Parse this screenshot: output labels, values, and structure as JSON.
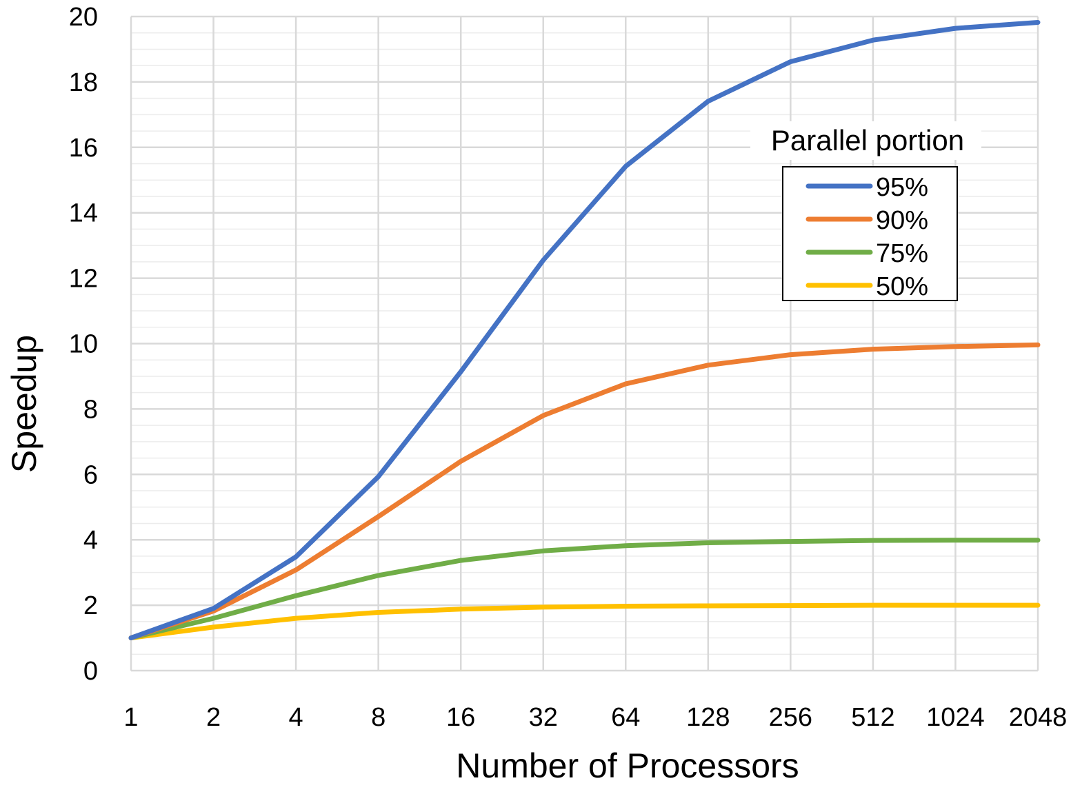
{
  "chart_data": {
    "type": "line",
    "title": "",
    "xlabel": "Number of Processors",
    "ylabel": "Speedup",
    "x": [
      1,
      2,
      4,
      8,
      16,
      32,
      64,
      128,
      256,
      512,
      1024,
      2048
    ],
    "x_tick_labels": [
      "1",
      "2",
      "4",
      "8",
      "16",
      "32",
      "64",
      "128",
      "256",
      "512",
      "1024",
      "2048"
    ],
    "x_scale": "log2",
    "ylim": [
      0,
      20
    ],
    "y_ticks": [
      "0",
      "2",
      "4",
      "6",
      "8",
      "10",
      "12",
      "14",
      "16",
      "18",
      "20"
    ],
    "grid": true,
    "legend": {
      "title": "Parallel portion",
      "placement": "right"
    },
    "series": [
      {
        "name": "95%",
        "color": "#4472C4",
        "values": [
          1.0,
          1.9,
          3.48,
          5.93,
          9.14,
          12.55,
          15.42,
          17.41,
          18.62,
          19.28,
          19.64,
          19.82
        ]
      },
      {
        "name": "90%",
        "color": "#ED7D31",
        "values": [
          1.0,
          1.82,
          3.08,
          4.71,
          6.4,
          7.8,
          8.77,
          9.34,
          9.66,
          9.83,
          9.91,
          9.96
        ]
      },
      {
        "name": "75%",
        "color": "#70AD47",
        "values": [
          1.0,
          1.6,
          2.29,
          2.91,
          3.37,
          3.66,
          3.82,
          3.91,
          3.95,
          3.98,
          3.99,
          3.99
        ]
      },
      {
        "name": "50%",
        "color": "#FFC000",
        "values": [
          1.0,
          1.33,
          1.6,
          1.78,
          1.88,
          1.94,
          1.97,
          1.98,
          1.99,
          2.0,
          2.0,
          2.0
        ]
      }
    ]
  }
}
